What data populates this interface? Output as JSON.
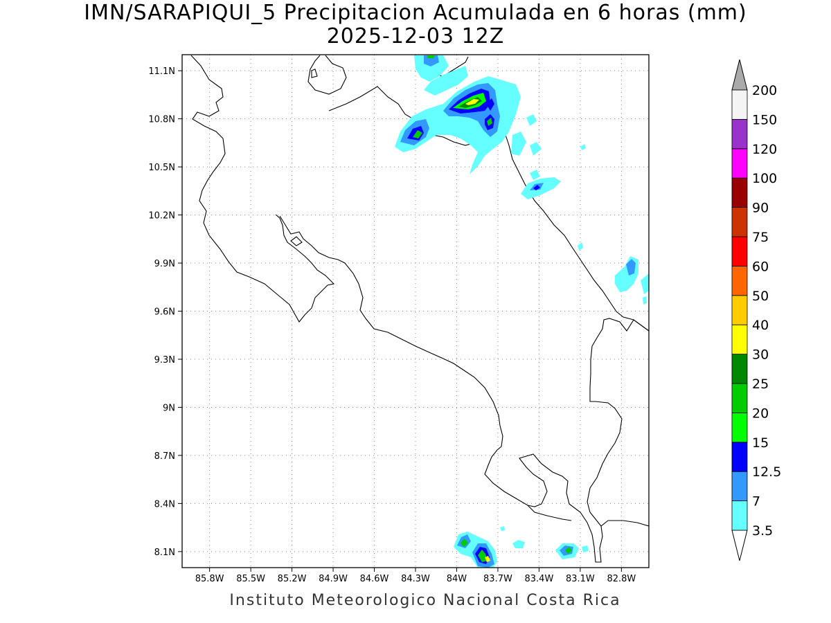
{
  "title": {
    "line1": "IMN/SARAPIQUI_5 Precipitacion Acumulada en 6 horas (mm)",
    "line2": "2025-12-03 12Z"
  },
  "footer": "Instituto Meteorologico Nacional Costa Rica",
  "map": {
    "lon_range": [
      -86.0,
      -82.6
    ],
    "lat_range": [
      8.0,
      11.2
    ],
    "lon_ticks": [
      {
        "value": -85.8,
        "label": "85.8W"
      },
      {
        "value": -85.5,
        "label": "85.5W"
      },
      {
        "value": -85.2,
        "label": "85.2W"
      },
      {
        "value": -84.9,
        "label": "84.9W"
      },
      {
        "value": -84.6,
        "label": "84.6W"
      },
      {
        "value": -84.3,
        "label": "84.3W"
      },
      {
        "value": -84.0,
        "label": "84W"
      },
      {
        "value": -83.7,
        "label": "83.7W"
      },
      {
        "value": -83.4,
        "label": "83.4W"
      },
      {
        "value": -83.1,
        "label": "83.1W"
      },
      {
        "value": -82.8,
        "label": "82.8W"
      }
    ],
    "lat_ticks": [
      {
        "value": 11.1,
        "label": "11.1N"
      },
      {
        "value": 10.8,
        "label": "10.8N"
      },
      {
        "value": 10.5,
        "label": "10.5N"
      },
      {
        "value": 10.2,
        "label": "10.2N"
      },
      {
        "value": 9.9,
        "label": "9.9N"
      },
      {
        "value": 9.6,
        "label": "9.6N"
      },
      {
        "value": 9.3,
        "label": "9.3N"
      },
      {
        "value": 9.0,
        "label": "9N"
      },
      {
        "value": 8.7,
        "label": "8.7N"
      },
      {
        "value": 8.4,
        "label": "8.4N"
      },
      {
        "value": 8.1,
        "label": "8.1N"
      }
    ],
    "grid": true,
    "grid_style": "dotted"
  },
  "colorbar": {
    "placement": "right",
    "colors": [
      "#66ffff",
      "#3399ff",
      "#0000ff",
      "#00ff00",
      "#00cc00",
      "#008800",
      "#ffff00",
      "#ffcc00",
      "#ff6600",
      "#ff0000",
      "#cc3300",
      "#990000",
      "#ff00ff",
      "#9933cc",
      "#f4f4f4"
    ],
    "levels": [
      "3.5",
      "7",
      "12.5",
      "15",
      "20",
      "25",
      "30",
      "40",
      "50",
      "60",
      "75",
      "90",
      "100",
      "120",
      "150",
      "200"
    ],
    "over_color": "#aaaaaa",
    "under_color": "#ffffff"
  }
}
